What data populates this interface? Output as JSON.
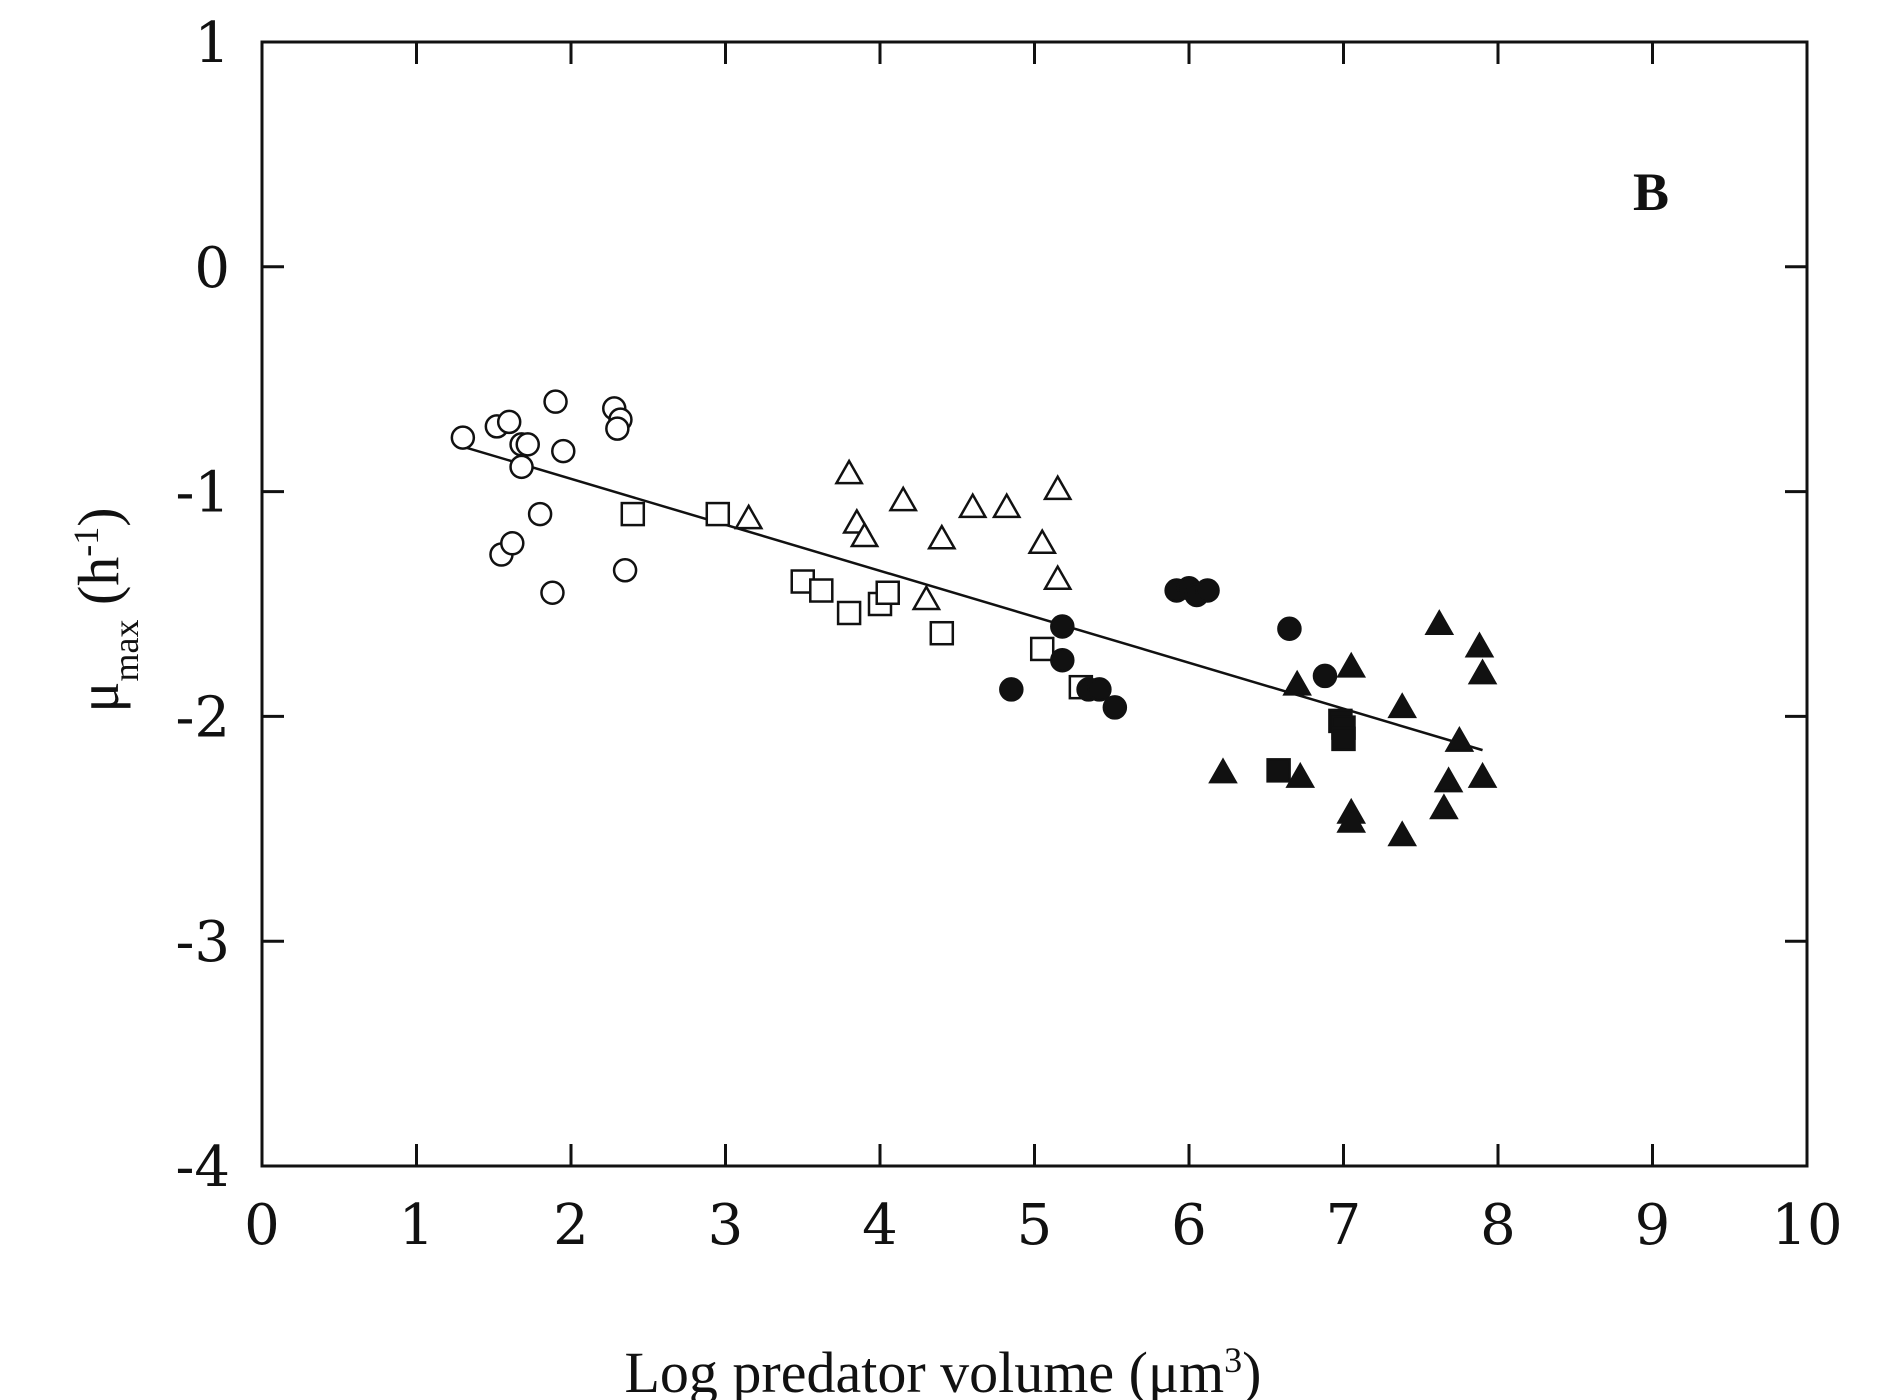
{
  "chart_data": {
    "type": "scatter",
    "panel_label": "B",
    "xlabel": "Log predator volume (μm",
    "xlabel_sup": "3",
    "xlabel_end": ")",
    "ylabel": "μ",
    "ylabel_sub": "max",
    "ylabel_mid": " (h",
    "ylabel_sup": "-1",
    "ylabel_end": ")",
    "xlim": [
      0,
      10
    ],
    "ylim": [
      -4,
      1
    ],
    "x_ticks": [
      0,
      1,
      2,
      3,
      4,
      5,
      6,
      7,
      8,
      9,
      10
    ],
    "x_tick_labels": [
      "0",
      "1",
      "2",
      "3",
      "4",
      "5",
      "6",
      "7",
      "8",
      "9",
      "10"
    ],
    "y_ticks": [
      1,
      0,
      -1,
      -2,
      -3,
      -4
    ],
    "y_tick_labels": [
      "1",
      "0",
      "-1",
      "-2",
      "-3",
      "-4"
    ],
    "grid": false,
    "series": [
      {
        "marker": "open-circle",
        "points": [
          [
            1.3,
            -0.76
          ],
          [
            1.52,
            -0.71
          ],
          [
            1.6,
            -0.69
          ],
          [
            1.68,
            -0.79
          ],
          [
            1.72,
            -0.79
          ],
          [
            1.68,
            -0.89
          ],
          [
            1.9,
            -0.6
          ],
          [
            1.95,
            -0.82
          ],
          [
            1.8,
            -1.1
          ],
          [
            1.55,
            -1.28
          ],
          [
            1.62,
            -1.23
          ],
          [
            1.88,
            -1.45
          ],
          [
            2.28,
            -0.63
          ],
          [
            2.32,
            -0.68
          ],
          [
            2.3,
            -0.72
          ],
          [
            2.35,
            -1.35
          ]
        ]
      },
      {
        "marker": "open-square",
        "points": [
          [
            2.4,
            -1.1
          ],
          [
            2.95,
            -1.1
          ],
          [
            3.5,
            -1.4
          ],
          [
            3.62,
            -1.44
          ],
          [
            3.8,
            -1.54
          ],
          [
            4.0,
            -1.5
          ],
          [
            4.05,
            -1.45
          ],
          [
            4.4,
            -1.63
          ],
          [
            5.05,
            -1.7
          ],
          [
            5.3,
            -1.87
          ]
        ]
      },
      {
        "marker": "open-triangle",
        "points": [
          [
            3.15,
            -1.12
          ],
          [
            3.8,
            -0.92
          ],
          [
            3.85,
            -1.14
          ],
          [
            3.9,
            -1.2
          ],
          [
            4.15,
            -1.04
          ],
          [
            4.3,
            -1.48
          ],
          [
            4.4,
            -1.21
          ],
          [
            4.6,
            -1.07
          ],
          [
            4.82,
            -1.07
          ],
          [
            5.05,
            -1.23
          ],
          [
            5.15,
            -0.99
          ],
          [
            5.15,
            -1.39
          ]
        ]
      },
      {
        "marker": "filled-circle",
        "points": [
          [
            4.85,
            -1.88
          ],
          [
            5.18,
            -1.6
          ],
          [
            5.18,
            -1.75
          ],
          [
            5.35,
            -1.88
          ],
          [
            5.42,
            -1.88
          ],
          [
            5.52,
            -1.96
          ],
          [
            5.92,
            -1.44
          ],
          [
            6.0,
            -1.43
          ],
          [
            6.05,
            -1.46
          ],
          [
            6.12,
            -1.44
          ],
          [
            6.65,
            -1.61
          ],
          [
            6.88,
            -1.82
          ]
        ]
      },
      {
        "marker": "filled-square",
        "points": [
          [
            6.58,
            -2.24
          ],
          [
            6.98,
            -2.02
          ],
          [
            7.0,
            -2.05
          ],
          [
            7.0,
            -2.1
          ]
        ]
      },
      {
        "marker": "filled-triangle",
        "points": [
          [
            6.22,
            -2.25
          ],
          [
            6.7,
            -1.86
          ],
          [
            6.72,
            -2.27
          ],
          [
            7.05,
            -1.78
          ],
          [
            7.05,
            -2.43
          ],
          [
            7.05,
            -2.47
          ],
          [
            7.38,
            -1.96
          ],
          [
            7.38,
            -2.53
          ],
          [
            7.62,
            -1.59
          ],
          [
            7.65,
            -2.41
          ],
          [
            7.68,
            -2.29
          ],
          [
            7.75,
            -2.11
          ],
          [
            7.88,
            -1.69
          ],
          [
            7.9,
            -1.81
          ],
          [
            7.9,
            -2.27
          ]
        ]
      }
    ],
    "regression_line": {
      "x": [
        1.3,
        7.9
      ],
      "y": [
        -0.8,
        -2.15
      ]
    }
  }
}
